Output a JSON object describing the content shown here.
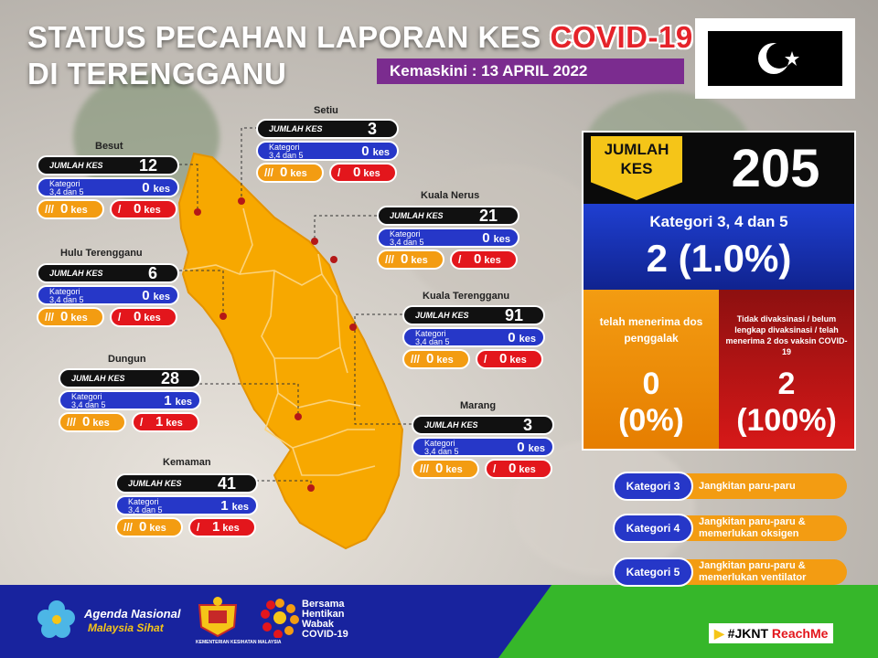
{
  "header": {
    "title_line1": "STATUS PECAHAN LAPORAN KES",
    "title_highlight": "COVID-19",
    "title_line2": "DI TERENGGANU",
    "update_text": "Kemaskini :  13 APRIL 2022"
  },
  "labels": {
    "jumlah_kes": "JUMLAH KES",
    "kategori": "Kategori",
    "kategori_sub": "3,4 dan 5",
    "kes_unit": "kes",
    "booster_icon": "///",
    "unvax_icon": "/"
  },
  "districts": [
    {
      "name": "Besut",
      "total": "12",
      "category": "0",
      "booster": "0",
      "unvax": "0"
    },
    {
      "name": "Setiu",
      "total": "3",
      "category": "0",
      "booster": "0",
      "unvax": "0"
    },
    {
      "name": "Kuala Nerus",
      "total": "21",
      "category": "0",
      "booster": "0",
      "unvax": "0"
    },
    {
      "name": "Hulu Terengganu",
      "total": "6",
      "category": "0",
      "booster": "0",
      "unvax": "0"
    },
    {
      "name": "Kuala Terengganu",
      "total": "91",
      "category": "0",
      "booster": "0",
      "unvax": "0"
    },
    {
      "name": "Dungun",
      "total": "28",
      "category": "1",
      "booster": "0",
      "unvax": "1"
    },
    {
      "name": "Marang",
      "total": "3",
      "category": "0",
      "booster": "0",
      "unvax": "0"
    },
    {
      "name": "Kemaman",
      "total": "41",
      "category": "1",
      "booster": "0",
      "unvax": "1"
    }
  ],
  "totals": {
    "label": "JUMLAH KES",
    "value": "205",
    "category_label": "Kategori 3, 4 dan 5",
    "category_value": "2 (1.0%)",
    "booster_label": "telah menerima dos penggalak",
    "booster_value": "0",
    "booster_pct": "(0%)",
    "unvax_label": "Tidak divaksinasi / belum lengkap divaksinasi / telah menerima 2 dos vaksin COVID-19",
    "unvax_value": "2",
    "unvax_pct": "(100%)"
  },
  "categories": [
    {
      "tag": "Kategori 3",
      "desc": "Jangkitan paru-paru"
    },
    {
      "tag": "Kategori 4",
      "desc": "Jangkitan paru-paru & memerlukan oksigen"
    },
    {
      "tag": "Kategori 5",
      "desc": "Jangkitan paru-paru & memerlukan ventilator"
    }
  ],
  "footer": {
    "agenda_line1": "Agenda Nasional",
    "agenda_line2": "Malaysia Sihat",
    "ministry_text": "KEMENTERIAN KESIHATAN MALAYSIA",
    "campaign_line1": "Bersama",
    "campaign_line2": "Hentikan",
    "campaign_line3": "Wabak",
    "campaign_line4": "COVID-19",
    "hashtag": "#JKNT",
    "hashtag_red": "ReachMe"
  },
  "colors": {
    "map_fill": "#f7a800",
    "accent_purple": "#7b2c8f",
    "blue": "#2637c8",
    "orange": "#f39c12",
    "red": "#e3161c",
    "footer_blue": "#18239e",
    "footer_green": "#36b72a"
  }
}
